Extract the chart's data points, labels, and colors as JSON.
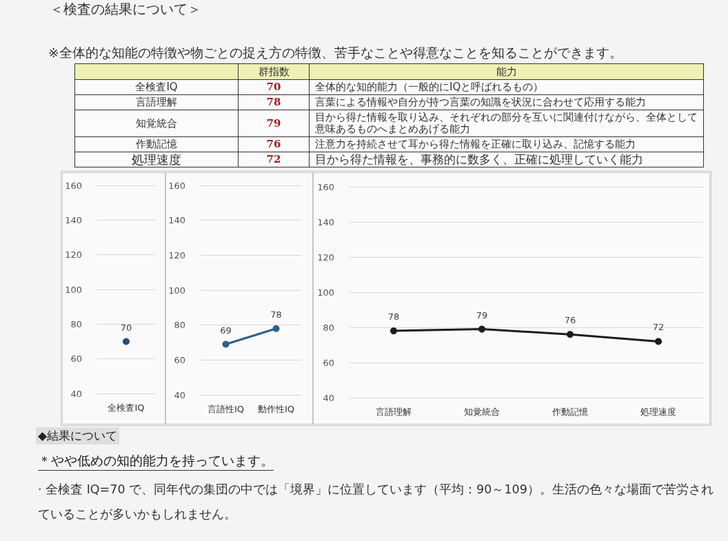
{
  "chart_data": [
    {
      "type": "other",
      "title": "＜検査の結果について＞",
      "subtitle": "※全体的な知能の特徴や物ごとの捉え方の特徴、苦手なことや得意なことを知ることができます。",
      "ylabel": "群指数",
      "xlabel": "能力",
      "categories": [
        "全検査IQ",
        "言語理解",
        "知覚統合",
        "作動記憶",
        "処理速度"
      ],
      "values": [
        70,
        78,
        79,
        76,
        72
      ],
      "data_labels": true,
      "annotations": [
        "全体的な知的能力（一般的にIQと呼ばれるもの）",
        "言葉による情報や自分が持つ言葉の知識を状況に合わせて応用する能力",
        "目から得た情報を取り込み、それぞれの部分を互いに関連付けながら、全体として意味あるものへまとめあげる能力",
        "注意力を持続させて耳から得た情報を正確に取り込み、記憶する能力",
        "目から得た情報を、事務的に数多く、正確に処理していく能力"
      ]
    },
    {
      "type": "line",
      "categories": [
        "全検査IQ"
      ],
      "values": [
        70
      ],
      "color": "#1f4e79",
      "ylim": [
        40,
        160
      ],
      "yticks": [
        40,
        60,
        80,
        100,
        120,
        140,
        160
      ],
      "grid": "y",
      "marker": "circle",
      "data_labels": true
    },
    {
      "type": "line",
      "categories": [
        "言語性IQ",
        "動作性IQ"
      ],
      "values": [
        69,
        78
      ],
      "color": "#2e5f8f",
      "ylim": [
        40,
        160
      ],
      "yticks": [
        40,
        60,
        80,
        100,
        120,
        140,
        160
      ],
      "grid": "y",
      "marker": "circle",
      "data_labels": true
    },
    {
      "type": "line",
      "categories": [
        "言語理解",
        "知覚統合",
        "作動記憶",
        "処理速度"
      ],
      "values": [
        78,
        79,
        76,
        72
      ],
      "color": "#1c1c1c",
      "ylim": [
        40,
        160
      ],
      "yticks": [
        40,
        60,
        80,
        100,
        120,
        140,
        160
      ],
      "grid": "y",
      "marker": "circle",
      "data_labels": true
    },
    {
      "type": "other",
      "title": "◆結果について",
      "subtitle": "＊やや低めの知的能力を持っています。",
      "annotations": [
        "· 全検査 IQ=70 で、同年代の集団の中では「境界」に位置しています（平均：90～109）。生活の色々な場面で苦労されていることが多いかもしれません。"
      ]
    }
  ]
}
